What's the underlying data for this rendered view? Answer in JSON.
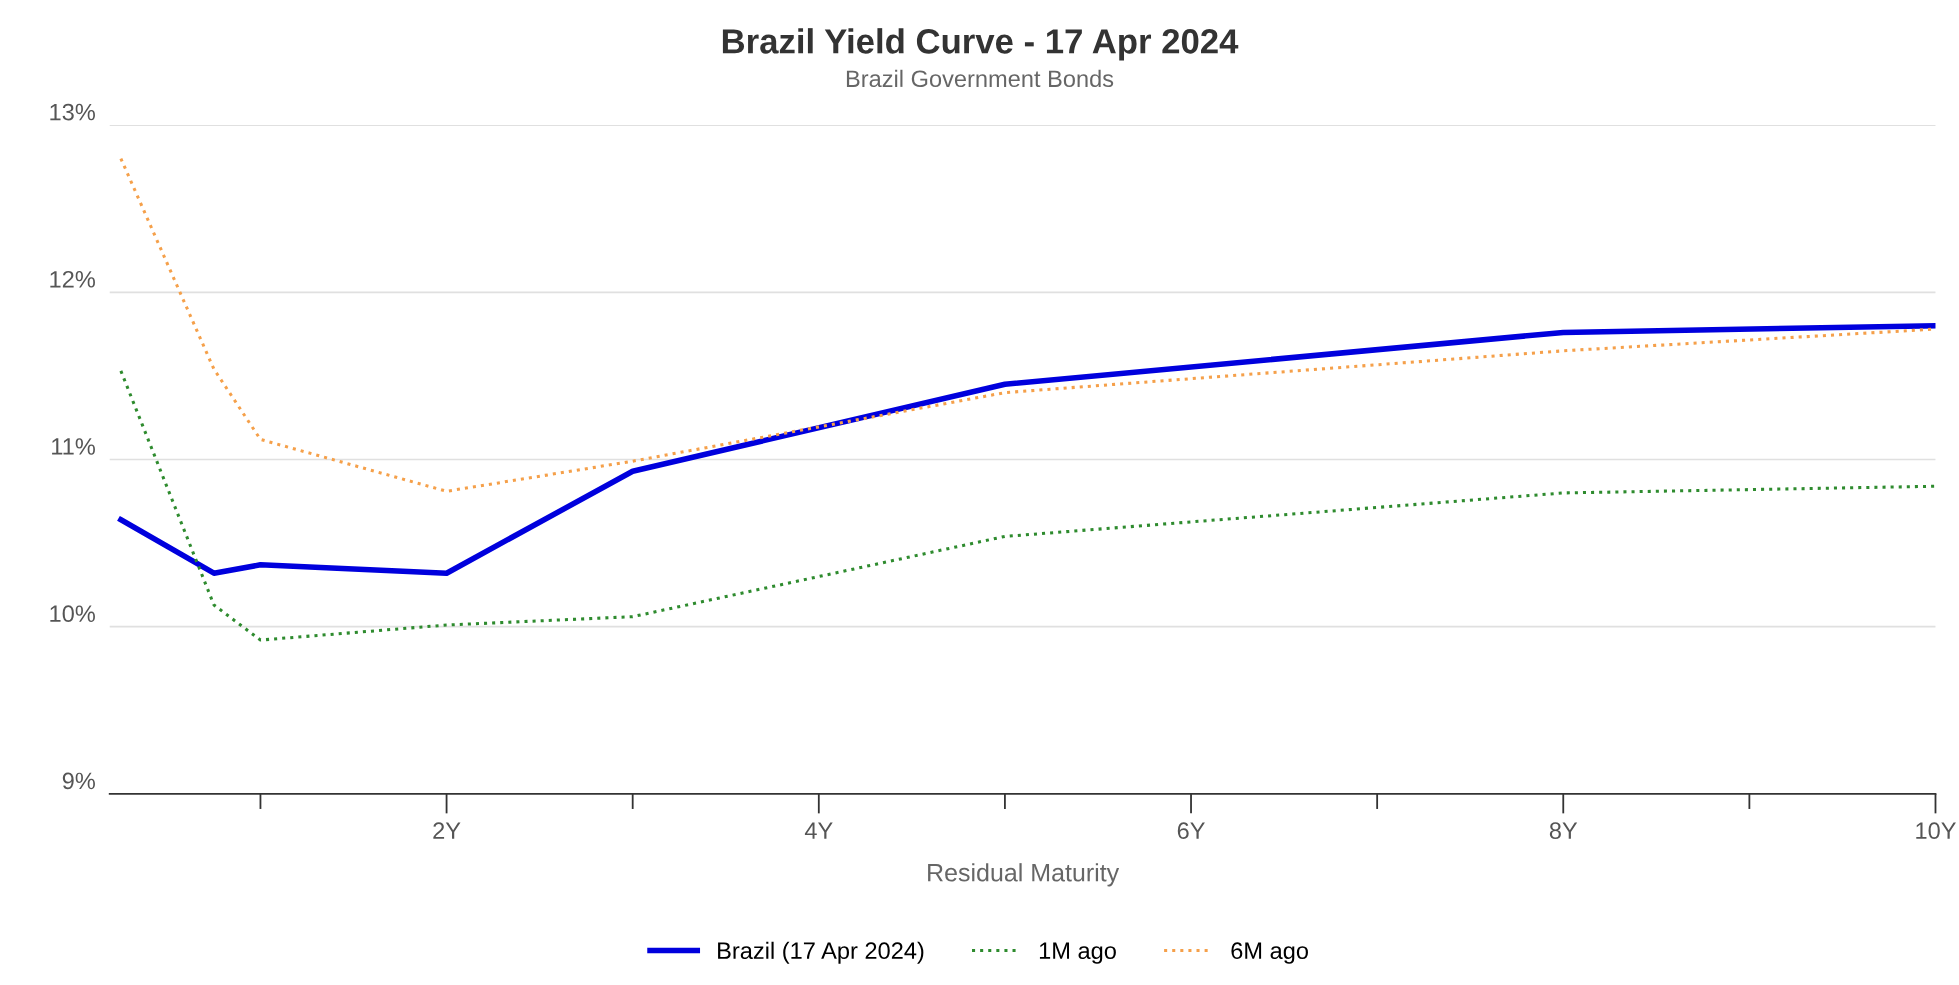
{
  "chart_data": {
    "type": "line",
    "title": "Brazil Yield Curve - 17 Apr 2024",
    "subtitle": "Brazil Government Bonds",
    "xlabel": "Residual Maturity",
    "x": [
      0.25,
      0.75,
      1,
      2,
      3,
      5,
      8,
      10
    ],
    "series": [
      {
        "name": "Brazil (17 Apr 2024)",
        "color": "#0000dd",
        "line_style": "solid",
        "values": [
          10.64,
          10.32,
          10.37,
          10.32,
          10.93,
          11.45,
          11.76,
          11.8
        ]
      },
      {
        "name": "1M ago",
        "color": "#2e8b2e",
        "line_style": "dotted",
        "values": [
          11.53,
          10.13,
          9.92,
          10.01,
          10.06,
          10.54,
          10.8,
          10.84
        ]
      },
      {
        "name": "6M ago",
        "color": "#f5a04a",
        "line_style": "dotted",
        "values": [
          12.8,
          11.54,
          11.12,
          10.81,
          10.99,
          11.4,
          11.65,
          11.78
        ]
      }
    ],
    "xlim": [
      0.19,
      10
    ],
    "xticks": [
      {
        "value": 1,
        "label": null
      },
      {
        "value": 2,
        "label": "2Y"
      },
      {
        "value": 3,
        "label": null
      },
      {
        "value": 4,
        "label": "4Y"
      },
      {
        "value": 5,
        "label": null
      },
      {
        "value": 6,
        "label": "6Y"
      },
      {
        "value": 7,
        "label": null
      },
      {
        "value": 8,
        "label": "8Y"
      },
      {
        "value": 9,
        "label": null
      },
      {
        "value": 10,
        "label": "10Y"
      }
    ],
    "ylim": [
      9,
      13
    ],
    "yticks": [
      {
        "value": 9,
        "label": "9%"
      },
      {
        "value": 10,
        "label": "10%"
      },
      {
        "value": 11,
        "label": "11%"
      },
      {
        "value": 12,
        "label": "12%"
      },
      {
        "value": 13,
        "label": "13%"
      }
    ],
    "grid": "y",
    "legend": "bottom"
  }
}
